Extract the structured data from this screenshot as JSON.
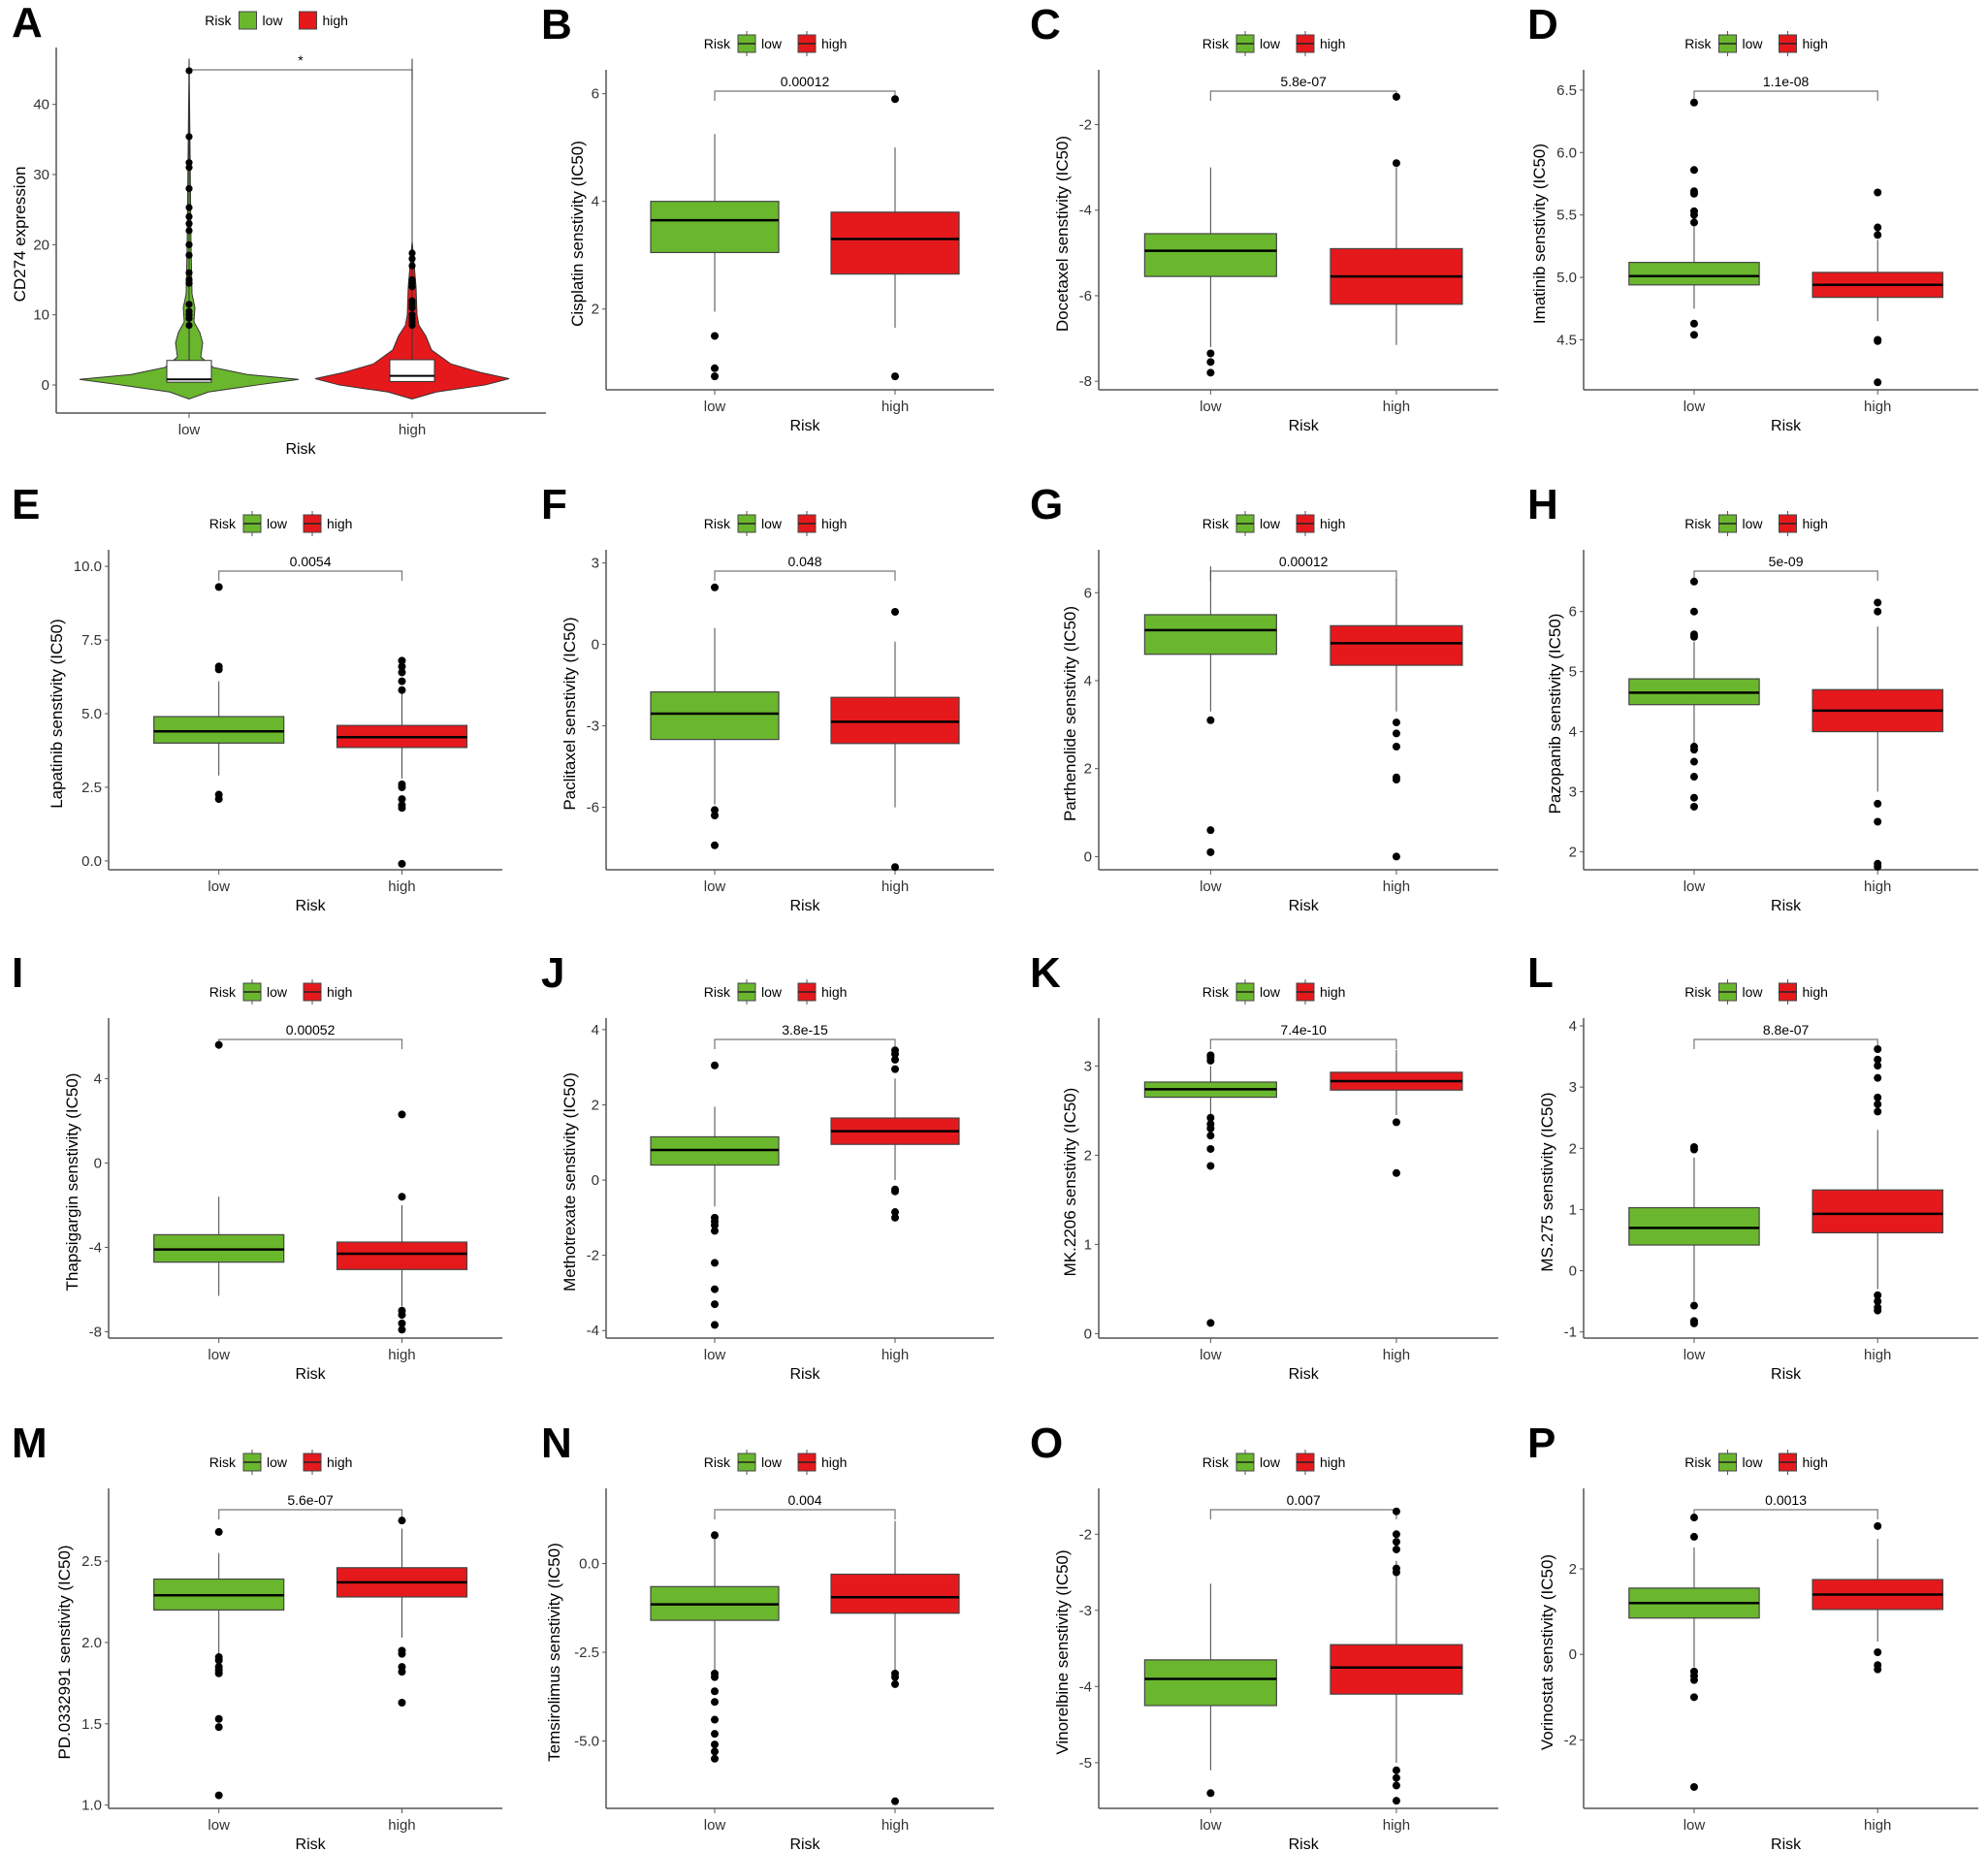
{
  "chart_data": {
    "type": "box",
    "legend_title": "Risk",
    "groups": [
      "low",
      "high"
    ],
    "xlabel": "Risk",
    "colors": {
      "low": "#6ab72e",
      "high": "#e5191c",
      "violin_box": "#ffffff"
    },
    "legend_placement": "top-center",
    "panels": [
      {
        "letter": "A",
        "kind": "violin",
        "ylabel": "CD274 expression",
        "p": "*",
        "ylim": [
          -4,
          47
        ],
        "yticks": [
          "0",
          "10",
          "20",
          "30",
          "40"
        ],
        "low": {
          "wlo": -2,
          "q1": 0.4,
          "med": 0.8,
          "q3": 3.5,
          "whi": 8,
          "outliers": [
            44.8,
            35.4,
            31.7,
            31,
            28,
            25.3,
            24,
            23,
            22,
            20,
            18.5,
            16,
            15,
            14.5,
            11.5,
            10.5,
            10,
            9.5,
            8.5
          ]
        },
        "high": {
          "wlo": -2,
          "q1": 0.5,
          "med": 1.3,
          "q3": 3.6,
          "whi": 8,
          "outliers": [
            18.8,
            18,
            17,
            15,
            14.5,
            14,
            12,
            11.5,
            11,
            10,
            9.5,
            9,
            8.5
          ]
        }
      },
      {
        "letter": "B",
        "ylabel": "Cisplatin senstivity (IC50)",
        "p": "0.00012",
        "ylim": [
          0.5,
          6.3
        ],
        "yticks": [
          "2",
          "4",
          "6"
        ],
        "low": {
          "wlo": 1.95,
          "q1": 3.05,
          "med": 3.65,
          "q3": 4.0,
          "whi": 5.25,
          "outliers": [
            1.5,
            0.9,
            0.75
          ]
        },
        "high": {
          "wlo": 1.65,
          "q1": 2.65,
          "med": 3.3,
          "q3": 3.8,
          "whi": 5.0,
          "outliers": [
            5.9,
            0.75
          ]
        }
      },
      {
        "letter": "C",
        "ylabel": "Docetaxel senstivity (IC50)",
        "p": "5.8e-07",
        "ylim": [
          -8.2,
          -0.9
        ],
        "yticks": [
          "-8",
          "-6",
          "-4",
          "-2"
        ],
        "low": {
          "wlo": -7.2,
          "q1": -5.55,
          "med": -4.95,
          "q3": -4.55,
          "whi": -3.0,
          "outliers": [
            -7.35,
            -7.55,
            -7.8
          ]
        },
        "high": {
          "wlo": -7.15,
          "q1": -6.2,
          "med": -5.55,
          "q3": -4.9,
          "whi": -3.0,
          "outliers": [
            -2.9,
            -1.35
          ]
        }
      },
      {
        "letter": "D",
        "ylabel": "Imatinib senstivity (IC50)",
        "p": "1.1e-08",
        "ylim": [
          4.1,
          6.6
        ],
        "yticks": [
          "4.5",
          "5.0",
          "5.5",
          "6.0",
          "6.5"
        ],
        "low": {
          "wlo": 4.75,
          "q1": 4.94,
          "med": 5.01,
          "q3": 5.12,
          "whi": 5.42,
          "outliers": [
            6.4,
            5.86,
            5.69,
            5.67,
            5.53,
            5.5,
            5.44,
            4.63,
            4.54
          ]
        },
        "high": {
          "wlo": 4.65,
          "q1": 4.84,
          "med": 4.94,
          "q3": 5.04,
          "whi": 5.3,
          "outliers": [
            5.68,
            5.4,
            5.34,
            4.5,
            4.49,
            4.16
          ]
        }
      },
      {
        "letter": "E",
        "ylabel": "Lapatinib senstivity (IC50)",
        "p": "0.0054",
        "ylim": [
          -0.3,
          10.3
        ],
        "yticks": [
          "0.0",
          "2.5",
          "5.0",
          "7.5",
          "10.0"
        ],
        "low": {
          "wlo": 2.9,
          "q1": 4.0,
          "med": 4.4,
          "q3": 4.9,
          "whi": 6.1,
          "outliers": [
            9.3,
            6.6,
            6.5,
            2.25,
            2.1
          ]
        },
        "high": {
          "wlo": 2.8,
          "q1": 3.85,
          "med": 4.2,
          "q3": 4.6,
          "whi": 5.9,
          "outliers": [
            6.8,
            6.6,
            6.4,
            6.1,
            5.8,
            2.6,
            2.5,
            2.1,
            1.9,
            1.8,
            -0.1
          ]
        }
      },
      {
        "letter": "F",
        "ylabel": "Paclitaxel senstivity (IC50)",
        "p": "0.048",
        "ylim": [
          -8.3,
          3.2
        ],
        "yticks": [
          "-6",
          "-3",
          "0",
          "3"
        ],
        "low": {
          "wlo": -5.9,
          "q1": -3.5,
          "med": -2.55,
          "q3": -1.75,
          "whi": 0.6,
          "outliers": [
            2.1,
            -6.1,
            -6.3,
            -7.4
          ]
        },
        "high": {
          "wlo": -6.0,
          "q1": -3.65,
          "med": -2.85,
          "q3": -1.95,
          "whi": 0.1,
          "outliers": [
            1.2,
            -8.2
          ]
        }
      },
      {
        "letter": "G",
        "ylabel": "Parthenolide senstivity (IC50)",
        "p": "0.00012",
        "ylim": [
          -0.3,
          6.8
        ],
        "yticks": [
          "0",
          "2",
          "4",
          "6"
        ],
        "low": {
          "wlo": 3.3,
          "q1": 4.6,
          "med": 5.15,
          "q3": 5.5,
          "whi": 6.6,
          "outliers": [
            3.1,
            0.6,
            0.1
          ]
        },
        "high": {
          "wlo": 3.3,
          "q1": 4.35,
          "med": 4.85,
          "q3": 5.25,
          "whi": 6.3,
          "outliers": [
            3.05,
            2.8,
            2.5,
            1.8,
            1.75,
            0
          ]
        }
      },
      {
        "letter": "H",
        "ylabel": "Pazopanib senstivity (IC50)",
        "p": "5e-09",
        "ylim": [
          1.7,
          6.9
        ],
        "yticks": [
          "2",
          "3",
          "4",
          "5",
          "6"
        ],
        "low": {
          "wlo": 3.8,
          "q1": 4.45,
          "med": 4.65,
          "q3": 4.88,
          "whi": 5.5,
          "outliers": [
            6.5,
            6.0,
            5.62,
            5.58,
            3.75,
            3.7,
            3.5,
            3.25,
            2.9,
            2.75
          ]
        },
        "high": {
          "wlo": 3.0,
          "q1": 4.0,
          "med": 4.35,
          "q3": 4.7,
          "whi": 5.75,
          "outliers": [
            6.15,
            6.0,
            2.8,
            2.5,
            1.8,
            1.75
          ]
        }
      },
      {
        "letter": "I",
        "ylabel": "Thapsigargin senstivity (IC50)",
        "p": "0.00052",
        "ylim": [
          -8.3,
          6.5
        ],
        "yticks": [
          "-8",
          "-4",
          "0",
          "4"
        ],
        "low": {
          "wlo": -6.3,
          "q1": -4.7,
          "med": -4.1,
          "q3": -3.4,
          "whi": -1.6,
          "outliers": [
            5.6
          ]
        },
        "high": {
          "wlo": -6.8,
          "q1": -5.05,
          "med": -4.3,
          "q3": -3.75,
          "whi": -2.0,
          "outliers": [
            2.3,
            -1.6,
            -7.0,
            -7.2,
            -7.6,
            -7.9
          ]
        }
      },
      {
        "letter": "J",
        "ylabel": "Methotrexate senstivity (IC50)",
        "p": "3.8e-15",
        "ylim": [
          -4.2,
          4.1
        ],
        "yticks": [
          "-4",
          "-2",
          "0",
          "2",
          "4"
        ],
        "low": {
          "wlo": -0.7,
          "q1": 0.4,
          "med": 0.8,
          "q3": 1.15,
          "whi": 1.95,
          "outliers": [
            3.05,
            -1.0,
            -1.1,
            -1.2,
            -1.35,
            -2.2,
            -2.9,
            -3.3,
            -3.85
          ]
        },
        "high": {
          "wlo": 0.0,
          "q1": 0.95,
          "med": 1.3,
          "q3": 1.65,
          "whi": 2.7,
          "outliers": [
            3.45,
            3.35,
            3.2,
            2.95,
            -0.25,
            -0.3,
            -0.85,
            -1.0
          ]
        }
      },
      {
        "letter": "K",
        "ylabel": "MK.2206 senstivity (IC50)",
        "p": "7.4e-10",
        "ylim": [
          -0.05,
          3.45
        ],
        "yticks": [
          "0",
          "1",
          "2",
          "3"
        ],
        "low": {
          "wlo": 2.45,
          "q1": 2.65,
          "med": 2.74,
          "q3": 2.82,
          "whi": 3.0,
          "outliers": [
            3.12,
            3.1,
            3.06,
            2.42,
            2.35,
            2.3,
            2.22,
            2.07,
            1.88,
            0.12
          ]
        },
        "high": {
          "wlo": 2.45,
          "q1": 2.73,
          "med": 2.83,
          "q3": 2.93,
          "whi": 3.18,
          "outliers": [
            2.37,
            1.8
          ]
        }
      },
      {
        "letter": "L",
        "ylabel": "MS.275 senstivity (IC50)",
        "p": "8.8e-07",
        "ylim": [
          -1.1,
          4.0
        ],
        "yticks": [
          "-1",
          "0",
          "1",
          "2",
          "3",
          "4"
        ],
        "low": {
          "wlo": -0.5,
          "q1": 0.42,
          "med": 0.7,
          "q3": 1.03,
          "whi": 1.85,
          "outliers": [
            2.02,
            1.98,
            -0.57,
            -0.82,
            -0.86
          ]
        },
        "high": {
          "wlo": -0.3,
          "q1": 0.62,
          "med": 0.93,
          "q3": 1.32,
          "whi": 2.3,
          "outliers": [
            3.62,
            3.45,
            3.35,
            3.15,
            2.83,
            2.72,
            2.6,
            -0.4,
            -0.5,
            -0.6,
            -0.65
          ]
        }
      },
      {
        "letter": "M",
        "ylabel": "PD.0332991 senstivity (IC50)",
        "p": "5.6e-07",
        "ylim": [
          0.98,
          2.9
        ],
        "yticks": [
          "1.0",
          "1.5",
          "2.0",
          "2.5"
        ],
        "low": {
          "wlo": 1.93,
          "q1": 2.2,
          "med": 2.29,
          "q3": 2.39,
          "whi": 2.55,
          "outliers": [
            2.68,
            1.91,
            1.89,
            1.85,
            1.83,
            1.81,
            1.53,
            1.48,
            1.06
          ]
        },
        "high": {
          "wlo": 2.03,
          "q1": 2.28,
          "med": 2.37,
          "q3": 2.46,
          "whi": 2.7,
          "outliers": [
            2.75,
            1.95,
            1.93,
            1.85,
            1.82,
            1.63
          ]
        }
      },
      {
        "letter": "N",
        "ylabel": "Temsirolimus senstivity (IC50)",
        "p": "0.004",
        "ylim": [
          -6.9,
          1.9
        ],
        "yticks": [
          "-5.0",
          "-2.5",
          "0.0"
        ],
        "low": {
          "wlo": -3.0,
          "q1": -1.6,
          "med": -1.15,
          "q3": -0.65,
          "whi": 0.7,
          "outliers": [
            0.8,
            -3.1,
            -3.2,
            -3.6,
            -3.9,
            -4.4,
            -4.8,
            -5.1,
            -5.3,
            -5.5
          ]
        },
        "high": {
          "wlo": -3.0,
          "q1": -1.4,
          "med": -0.95,
          "q3": -0.3,
          "whi": 1.2,
          "outliers": [
            -3.1,
            -3.2,
            -3.4,
            -6.7
          ]
        }
      },
      {
        "letter": "O",
        "ylabel": "Vinorelbine senstivity (IC50)",
        "p": "0.007",
        "ylim": [
          -5.6,
          -1.5
        ],
        "yticks": [
          "-5",
          "-4",
          "-3",
          "-2"
        ],
        "low": {
          "wlo": -5.1,
          "q1": -4.25,
          "med": -3.9,
          "q3": -3.65,
          "whi": -2.65,
          "outliers": [
            -5.4
          ]
        },
        "high": {
          "wlo": -5.0,
          "q1": -4.1,
          "med": -3.75,
          "q3": -3.45,
          "whi": -2.35,
          "outliers": [
            -1.7,
            -2.0,
            -2.1,
            -2.2,
            -2.45,
            -2.5,
            -5.1,
            -5.2,
            -5.3,
            -5.5
          ]
        }
      },
      {
        "letter": "P",
        "ylabel": "Vorinostat senstivity (IC50)",
        "p": "0.0013",
        "ylim": [
          -3.6,
          3.7
        ],
        "yticks": [
          "-2",
          "0",
          "2"
        ],
        "low": {
          "wlo": -0.3,
          "q1": 0.85,
          "med": 1.2,
          "q3": 1.55,
          "whi": 2.5,
          "outliers": [
            3.2,
            2.75,
            -0.4,
            -0.5,
            -0.6,
            -1.0,
            -3.1
          ]
        },
        "high": {
          "wlo": 0.3,
          "q1": 1.05,
          "med": 1.4,
          "q3": 1.75,
          "whi": 2.7,
          "outliers": [
            3.0,
            0.05,
            -0.25,
            -0.35
          ]
        }
      }
    ]
  }
}
